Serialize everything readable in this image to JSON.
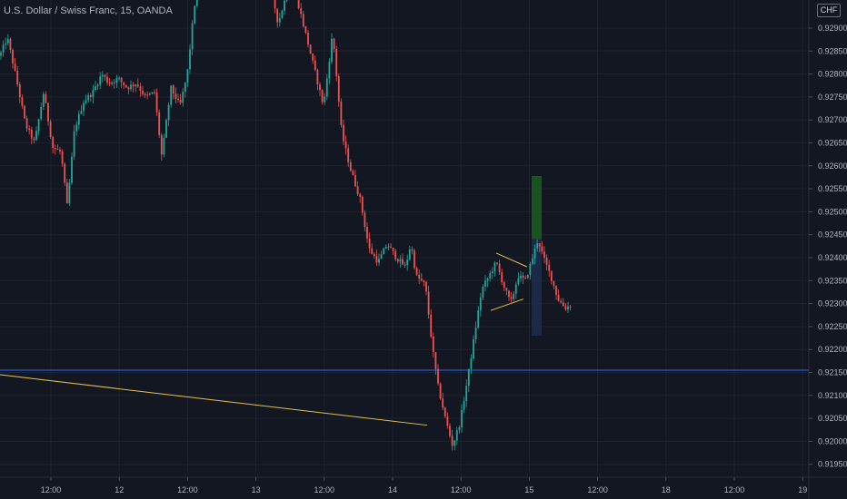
{
  "header": {
    "title": "U.S. Dollar / Swiss Franc, 15, OANDA",
    "currency_badge": "CHF"
  },
  "colors": {
    "background": "#131722",
    "up": "#26a69a",
    "down": "#ef5350",
    "horizontal_line": "#2962ff",
    "trend_line": "#e5c14f",
    "target_zone": "#1b5e20",
    "stop_zone": "#1c2b4d"
  },
  "chart_data": {
    "type": "candlestick",
    "symbol": "USD/CHF",
    "interval": "15",
    "source": "OANDA",
    "currency": "CHF",
    "ylim": [
      0.9192,
      0.93
    ],
    "price_ticks": [
      "0.92900",
      "0.92850",
      "0.92800",
      "0.92750",
      "0.92700",
      "0.92650",
      "0.92600",
      "0.92550",
      "0.92500",
      "0.92450",
      "0.92400",
      "0.92350",
      "0.92300",
      "0.92250",
      "0.92200",
      "0.92150",
      "0.92100",
      "0.92050",
      "0.92000",
      "0.91950"
    ],
    "time_ticks": [
      "12:00",
      "12",
      "12:00",
      "13",
      "12:00",
      "14",
      "12:00",
      "15",
      "12:00",
      "18",
      "12:00",
      "19"
    ],
    "approx_price_path": [
      {
        "x": 0,
        "y": 0.9284
      },
      {
        "x": 8,
        "y": 0.9288
      },
      {
        "x": 18,
        "y": 0.9279
      },
      {
        "x": 28,
        "y": 0.9269
      },
      {
        "x": 38,
        "y": 0.9265
      },
      {
        "x": 48,
        "y": 0.9276
      },
      {
        "x": 58,
        "y": 0.9264
      },
      {
        "x": 67,
        "y": 0.9263
      },
      {
        "x": 74,
        "y": 0.9251
      },
      {
        "x": 82,
        "y": 0.9268
      },
      {
        "x": 92,
        "y": 0.9274
      },
      {
        "x": 102,
        "y": 0.9276
      },
      {
        "x": 112,
        "y": 0.928
      },
      {
        "x": 120,
        "y": 0.9278
      },
      {
        "x": 130,
        "y": 0.9279
      },
      {
        "x": 140,
        "y": 0.9277
      },
      {
        "x": 150,
        "y": 0.9278
      },
      {
        "x": 160,
        "y": 0.9275
      },
      {
        "x": 170,
        "y": 0.9276
      },
      {
        "x": 178,
        "y": 0.9262
      },
      {
        "x": 188,
        "y": 0.9277
      },
      {
        "x": 198,
        "y": 0.9273
      },
      {
        "x": 206,
        "y": 0.928
      },
      {
        "x": 214,
        "y": 0.9295
      },
      {
        "x": 222,
        "y": 0.9302
      },
      {
        "x": 230,
        "y": 0.9301
      },
      {
        "x": 298,
        "y": 0.9299
      },
      {
        "x": 306,
        "y": 0.9291
      },
      {
        "x": 316,
        "y": 0.9298
      },
      {
        "x": 326,
        "y": 0.9297
      },
      {
        "x": 336,
        "y": 0.9289
      },
      {
        "x": 346,
        "y": 0.9281
      },
      {
        "x": 356,
        "y": 0.9273
      },
      {
        "x": 366,
        "y": 0.9289
      },
      {
        "x": 376,
        "y": 0.9267
      },
      {
        "x": 386,
        "y": 0.9259
      },
      {
        "x": 396,
        "y": 0.9253
      },
      {
        "x": 406,
        "y": 0.9242
      },
      {
        "x": 416,
        "y": 0.9239
      },
      {
        "x": 426,
        "y": 0.9243
      },
      {
        "x": 436,
        "y": 0.924
      },
      {
        "x": 446,
        "y": 0.9238
      },
      {
        "x": 452,
        "y": 0.9243
      },
      {
        "x": 458,
        "y": 0.9236
      },
      {
        "x": 468,
        "y": 0.9234
      },
      {
        "x": 476,
        "y": 0.922
      },
      {
        "x": 482,
        "y": 0.9212
      },
      {
        "x": 490,
        "y": 0.9205
      },
      {
        "x": 498,
        "y": 0.9199
      },
      {
        "x": 506,
        "y": 0.9204
      },
      {
        "x": 514,
        "y": 0.9213
      },
      {
        "x": 522,
        "y": 0.9223
      },
      {
        "x": 530,
        "y": 0.9233
      },
      {
        "x": 538,
        "y": 0.9236
      },
      {
        "x": 546,
        "y": 0.9239
      },
      {
        "x": 554,
        "y": 0.9234
      },
      {
        "x": 562,
        "y": 0.923
      },
      {
        "x": 570,
        "y": 0.9236
      },
      {
        "x": 578,
        "y": 0.9235
      },
      {
        "x": 586,
        "y": 0.924
      },
      {
        "x": 592,
        "y": 0.9244
      },
      {
        "x": 598,
        "y": 0.924
      },
      {
        "x": 606,
        "y": 0.9236
      },
      {
        "x": 614,
        "y": 0.9231
      },
      {
        "x": 622,
        "y": 0.9229
      },
      {
        "x": 630,
        "y": 0.923
      }
    ],
    "horizontal_level": 0.92155,
    "trend_line": {
      "from": {
        "x": 0,
        "y": 0.92145
      },
      "to": {
        "x": 470,
        "y": 0.92035
      }
    },
    "triangle_pattern": {
      "upper": {
        "from": {
          "x": 546,
          "y": 0.9241
        },
        "to": {
          "x": 580,
          "y": 0.9238
        }
      },
      "lower": {
        "from": {
          "x": 540,
          "y": 0.92285
        },
        "to": {
          "x": 576,
          "y": 0.9231
        }
      }
    },
    "long_position": {
      "x_from": 585,
      "x_to": 596,
      "entry": 0.9244,
      "target": 0.92578,
      "stop": 0.9223
    }
  }
}
